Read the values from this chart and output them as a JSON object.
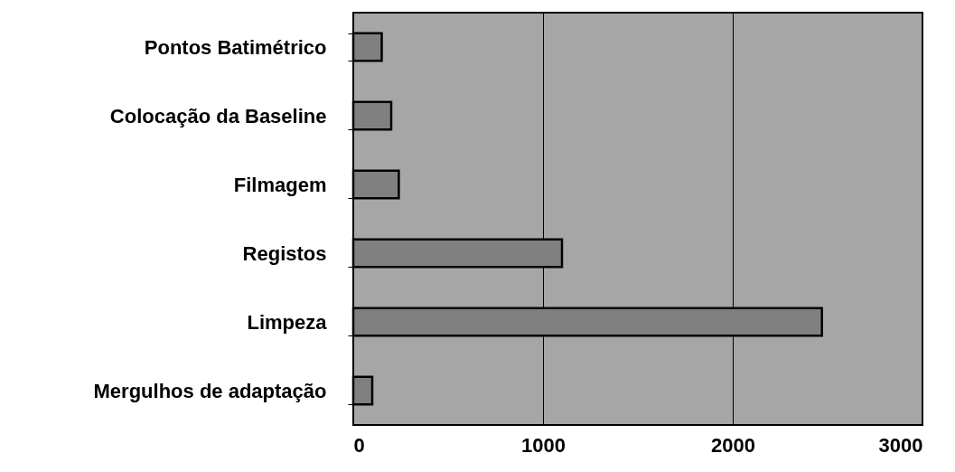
{
  "chart_data": {
    "type": "bar",
    "orientation": "horizontal",
    "categories": [
      "Pontos Batimétrico",
      "Colocação da Baseline",
      "Filmagem",
      "Registos",
      "Limpeza",
      "Mergulhos de adaptação"
    ],
    "values": [
      150,
      200,
      240,
      1100,
      2470,
      100
    ],
    "color": "#808080",
    "xlim": [
      0,
      3000
    ],
    "xticks": [
      0,
      1000,
      2000,
      3000
    ],
    "grid": "x"
  }
}
